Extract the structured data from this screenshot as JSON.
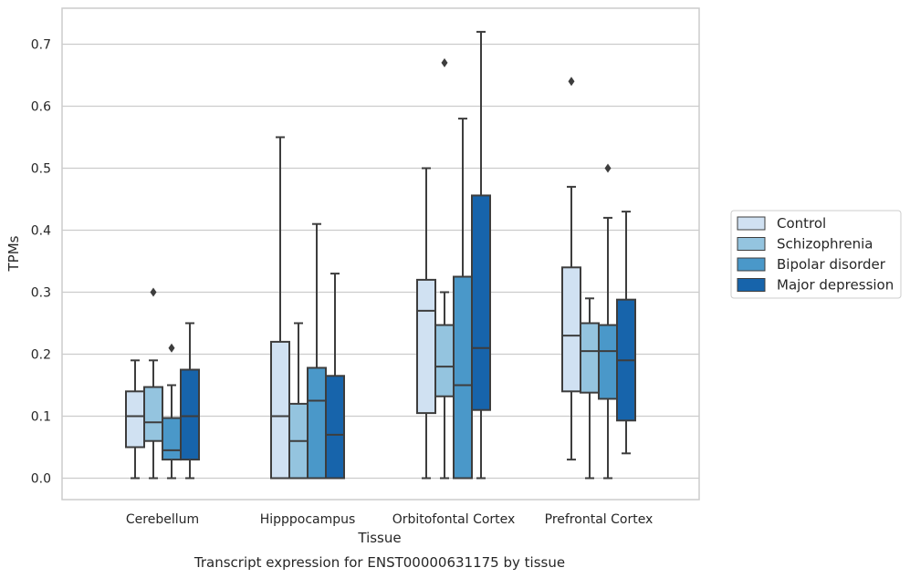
{
  "chart_data": {
    "type": "boxplot",
    "caption": "Transcript expression for ENST00000631175 by tissue",
    "xlabel": "Tissue",
    "ylabel": "TPMs",
    "ylim": [
      -0.035,
      0.76
    ],
    "yticks": [
      "0.0",
      "0.1",
      "0.2",
      "0.3",
      "0.4",
      "0.5",
      "0.6",
      "0.7"
    ],
    "ytick_values": [
      0.0,
      0.1,
      0.2,
      0.3,
      0.4,
      0.5,
      0.6,
      0.7
    ],
    "grid": "horizontal",
    "legend_position": "right, outside plot",
    "categories": [
      "Cerebellum",
      "Hipppocampus",
      "Orbitofontal Cortex",
      "Prefrontal Cortex"
    ],
    "series": [
      {
        "name": "Control",
        "color": "#d0e1f2",
        "boxes": [
          {
            "whislo": 0.0,
            "q1": 0.05,
            "med": 0.1,
            "q3": 0.14,
            "whishi": 0.19,
            "fliers": []
          },
          {
            "whislo": 0.0,
            "q1": 0.0,
            "med": 0.1,
            "q3": 0.22,
            "whishi": 0.55,
            "fliers": []
          },
          {
            "whislo": 0.0,
            "q1": 0.105,
            "med": 0.27,
            "q3": 0.32,
            "whishi": 0.5,
            "fliers": []
          },
          {
            "whislo": 0.03,
            "q1": 0.14,
            "med": 0.23,
            "q3": 0.34,
            "whishi": 0.47,
            "fliers": [
              0.64
            ]
          }
        ]
      },
      {
        "name": "Schizophrenia",
        "color": "#94c4df",
        "boxes": [
          {
            "whislo": 0.0,
            "q1": 0.06,
            "med": 0.09,
            "q3": 0.147,
            "whishi": 0.19,
            "fliers": [
              0.3
            ]
          },
          {
            "whislo": 0.0,
            "q1": 0.0,
            "med": 0.06,
            "q3": 0.12,
            "whishi": 0.25,
            "fliers": []
          },
          {
            "whislo": 0.0,
            "q1": 0.132,
            "med": 0.18,
            "q3": 0.247,
            "whishi": 0.3,
            "fliers": [
              0.67
            ]
          },
          {
            "whislo": 0.0,
            "q1": 0.138,
            "med": 0.205,
            "q3": 0.25,
            "whishi": 0.29,
            "fliers": []
          }
        ]
      },
      {
        "name": "Bipolar disorder",
        "color": "#4a98c9",
        "boxes": [
          {
            "whislo": 0.0,
            "q1": 0.03,
            "med": 0.045,
            "q3": 0.097,
            "whishi": 0.15,
            "fliers": [
              0.21
            ]
          },
          {
            "whislo": 0.0,
            "q1": 0.0,
            "med": 0.125,
            "q3": 0.178,
            "whishi": 0.41,
            "fliers": []
          },
          {
            "whislo": 0.0,
            "q1": 0.0,
            "med": 0.15,
            "q3": 0.325,
            "whishi": 0.58,
            "fliers": []
          },
          {
            "whislo": 0.0,
            "q1": 0.128,
            "med": 0.205,
            "q3": 0.247,
            "whishi": 0.42,
            "fliers": [
              0.5
            ]
          }
        ]
      },
      {
        "name": "Major depression",
        "color": "#1764ab",
        "boxes": [
          {
            "whislo": 0.0,
            "q1": 0.03,
            "med": 0.1,
            "q3": 0.175,
            "whishi": 0.25,
            "fliers": []
          },
          {
            "whislo": 0.0,
            "q1": 0.0,
            "med": 0.07,
            "q3": 0.165,
            "whishi": 0.33,
            "fliers": []
          },
          {
            "whislo": 0.0,
            "q1": 0.11,
            "med": 0.21,
            "q3": 0.456,
            "whishi": 0.72,
            "fliers": []
          },
          {
            "whislo": 0.04,
            "q1": 0.093,
            "med": 0.19,
            "q3": 0.288,
            "whishi": 0.43,
            "fliers": []
          }
        ]
      }
    ],
    "colors": {
      "grid": "#cccccc",
      "frame": "#cccccc",
      "box_edge": "#3d3d3d",
      "text": "#262626"
    }
  }
}
